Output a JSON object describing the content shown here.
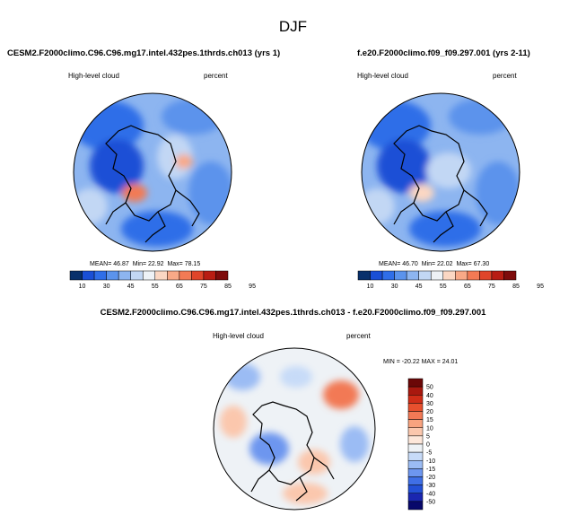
{
  "page": {
    "title": "DJF"
  },
  "panels": [
    {
      "case": "CESM2.F2000climo.C96.C96.mg17.intel.432pes.1thrds.ch013 (yrs 1)",
      "variable": "High-level cloud",
      "units": "percent",
      "stats": {
        "mean_label": "MEAN=",
        "mean": "46.87",
        "min_label": "Min=",
        "min": "22.92",
        "max_label": "Max=",
        "max": "78.15"
      }
    },
    {
      "case": "f.e20.F2000climo.f09_f09.297.001 (yrs 2-11)",
      "variable": "High-level cloud",
      "units": "percent",
      "stats": {
        "mean_label": "MEAN=",
        "mean": "46.70",
        "min_label": "Min=",
        "min": "22.02",
        "max_label": "Max=",
        "max": "67.30"
      }
    }
  ],
  "difference": {
    "title": "CESM2.F2000climo.C96.C96.mg17.intel.432pes.1thrds.ch013 - f.e20.F2000climo.f09_f09.297.001",
    "variable": "High-level cloud",
    "units": "percent",
    "minmax": "MIN = -20.22 MAX = 24.01"
  },
  "colors": {
    "abs_scale": [
      "#08306b",
      "#1a4fd6",
      "#2f6ee8",
      "#5b93ec",
      "#8db5f0",
      "#c2d7f4",
      "#eef2f6",
      "#fbd7c3",
      "#f8a987",
      "#f27a55",
      "#e0452a",
      "#b81d13",
      "#7e0c0c"
    ],
    "diff_scale": [
      "#08086b",
      "#1a26b0",
      "#2350d6",
      "#3f6fe6",
      "#6d96ef",
      "#9bbcf4",
      "#c7dbf8",
      "#eef2f6",
      "#fde7da",
      "#fbc7ad",
      "#f8a37f",
      "#f27955",
      "#e8502e",
      "#d02d18",
      "#a9180f",
      "#6b0707"
    ],
    "land_outline": "#000000"
  },
  "chart_data": [
    {
      "type": "heatmap",
      "projection": "north-polar-stereographic",
      "title": "CESM2.F2000climo.C96.C96.mg17.intel.432pes.1thrds.ch013 (yrs 1)",
      "variable": "High-level cloud",
      "units": "percent",
      "colorbar_levels": [
        10,
        30,
        45,
        55,
        65,
        75,
        85,
        95
      ],
      "colorbar_tick_labels": [
        "10",
        "30",
        "45",
        "55",
        "65",
        "75",
        "85",
        "95"
      ],
      "mean": 46.87,
      "min": 22.92,
      "max": 78.15
    },
    {
      "type": "heatmap",
      "projection": "north-polar-stereographic",
      "title": "f.e20.F2000climo.f09_f09.297.001 (yrs 2-11)",
      "variable": "High-level cloud",
      "units": "percent",
      "colorbar_levels": [
        10,
        30,
        45,
        55,
        65,
        75,
        85,
        95
      ],
      "colorbar_tick_labels": [
        "10",
        "30",
        "45",
        "55",
        "65",
        "75",
        "85",
        "95"
      ],
      "mean": 46.7,
      "min": 22.02,
      "max": 67.3
    },
    {
      "type": "heatmap",
      "projection": "north-polar-stereographic",
      "title": "CESM2.F2000climo.C96.C96.mg17.intel.432pes.1thrds.ch013 - f.e20.F2000climo.f09_f09.297.001",
      "variable": "High-level cloud",
      "units": "percent",
      "colorbar_levels": [
        50,
        40,
        30,
        20,
        15,
        10,
        5,
        0,
        -5,
        -10,
        -15,
        -20,
        -30,
        -40,
        -50
      ],
      "colorbar_tick_labels": [
        "50",
        "40",
        "30",
        "20",
        "15",
        "10",
        "5",
        "0",
        "-5",
        "-10",
        "-15",
        "-20",
        "-30",
        "-40",
        "-50"
      ],
      "min": -20.22,
      "max": 24.01
    }
  ]
}
